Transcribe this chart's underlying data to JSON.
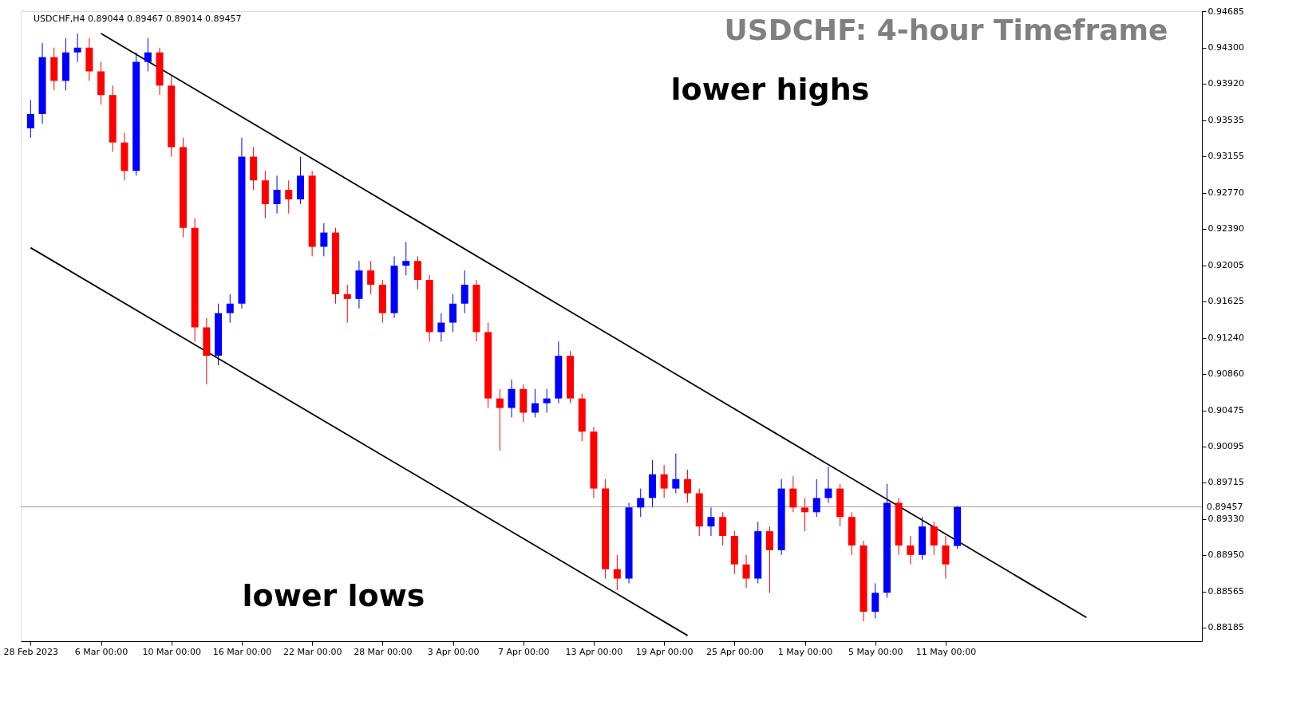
{
  "chart_data": {
    "type": "candlestick",
    "title": "USDCHF: 4-hour Timeframe",
    "annotations": [
      "USDCHF,H4  0.89044 0.89467 0.89014 0.89457",
      "lower highs",
      "lower lows"
    ],
    "categories": [
      "28 Feb 2023",
      null,
      null,
      null,
      null,
      null,
      "6 Mar 00:00",
      null,
      null,
      null,
      null,
      null,
      "10 Mar 00:00",
      null,
      null,
      null,
      null,
      null,
      "16 Mar 00:00",
      null,
      null,
      null,
      null,
      null,
      "22 Mar 00:00",
      null,
      null,
      null,
      null,
      null,
      "28 Mar 00:00",
      null,
      null,
      null,
      null,
      null,
      "3 Apr 00:00",
      null,
      null,
      null,
      null,
      null,
      "7 Apr 00:00",
      null,
      null,
      null,
      null,
      null,
      "13 Apr 00:00",
      null,
      null,
      null,
      null,
      null,
      "19 Apr 00:00",
      null,
      null,
      null,
      null,
      null,
      "25 Apr 00:00",
      null,
      null,
      null,
      null,
      null,
      "1 May 00:00",
      null,
      null,
      null,
      null,
      null,
      "5 May 00:00",
      null,
      null,
      null,
      null,
      null,
      "11 May 00:00",
      null,
      null,
      null,
      null,
      null,
      null,
      null,
      null,
      null,
      null,
      null,
      null,
      null,
      null,
      null,
      null,
      null,
      null,
      null,
      null,
      null
    ],
    "ohlc": [
      [
        0.9345,
        0.9375,
        0.9335,
        0.936
      ],
      [
        0.936,
        0.9435,
        0.935,
        0.942
      ],
      [
        0.942,
        0.943,
        0.9385,
        0.9395
      ],
      [
        0.9395,
        0.944,
        0.9385,
        0.9425
      ],
      [
        0.9425,
        0.9445,
        0.9415,
        0.943
      ],
      [
        0.943,
        0.944,
        0.9395,
        0.9405
      ],
      [
        0.9405,
        0.9415,
        0.937,
        0.938
      ],
      [
        0.938,
        0.939,
        0.932,
        0.933
      ],
      [
        0.933,
        0.934,
        0.929,
        0.93
      ],
      [
        0.93,
        0.9425,
        0.9295,
        0.9415
      ],
      [
        0.9415,
        0.944,
        0.9405,
        0.9425
      ],
      [
        0.9425,
        0.943,
        0.938,
        0.939
      ],
      [
        0.939,
        0.94,
        0.9315,
        0.9325
      ],
      [
        0.9325,
        0.9335,
        0.923,
        0.924
      ],
      [
        0.924,
        0.925,
        0.912,
        0.9135
      ],
      [
        0.9135,
        0.9145,
        0.9075,
        0.9105
      ],
      [
        0.9105,
        0.916,
        0.9095,
        0.915
      ],
      [
        0.915,
        0.917,
        0.914,
        0.916
      ],
      [
        0.916,
        0.9335,
        0.9155,
        0.9315
      ],
      [
        0.9315,
        0.9325,
        0.928,
        0.929
      ],
      [
        0.929,
        0.93,
        0.925,
        0.9265
      ],
      [
        0.9265,
        0.9295,
        0.9255,
        0.928
      ],
      [
        0.928,
        0.929,
        0.9255,
        0.927
      ],
      [
        0.927,
        0.9315,
        0.9265,
        0.9295
      ],
      [
        0.9295,
        0.93,
        0.921,
        0.922
      ],
      [
        0.922,
        0.9245,
        0.921,
        0.9235
      ],
      [
        0.9235,
        0.924,
        0.916,
        0.917
      ],
      [
        0.917,
        0.918,
        0.914,
        0.9165
      ],
      [
        0.9165,
        0.9205,
        0.9155,
        0.9195
      ],
      [
        0.9195,
        0.9205,
        0.917,
        0.918
      ],
      [
        0.918,
        0.9185,
        0.914,
        0.915
      ],
      [
        0.915,
        0.921,
        0.9145,
        0.92
      ],
      [
        0.92,
        0.9225,
        0.919,
        0.9205
      ],
      [
        0.9205,
        0.921,
        0.9175,
        0.9185
      ],
      [
        0.9185,
        0.919,
        0.912,
        0.913
      ],
      [
        0.913,
        0.915,
        0.912,
        0.914
      ],
      [
        0.914,
        0.917,
        0.913,
        0.916
      ],
      [
        0.916,
        0.9195,
        0.915,
        0.918
      ],
      [
        0.918,
        0.9185,
        0.912,
        0.913
      ],
      [
        0.913,
        0.914,
        0.905,
        0.906
      ],
      [
        0.906,
        0.907,
        0.9005,
        0.905
      ],
      [
        0.905,
        0.908,
        0.904,
        0.907
      ],
      [
        0.907,
        0.9075,
        0.9035,
        0.9045
      ],
      [
        0.9045,
        0.907,
        0.904,
        0.9055
      ],
      [
        0.9055,
        0.907,
        0.9045,
        0.906
      ],
      [
        0.906,
        0.912,
        0.9055,
        0.9105
      ],
      [
        0.9105,
        0.911,
        0.9055,
        0.906
      ],
      [
        0.906,
        0.9065,
        0.9015,
        0.9025
      ],
      [
        0.9025,
        0.903,
        0.8955,
        0.8965
      ],
      [
        0.8965,
        0.8975,
        0.887,
        0.888
      ],
      [
        0.888,
        0.8895,
        0.8858,
        0.887
      ],
      [
        0.887,
        0.895,
        0.8865,
        0.8945
      ],
      [
        0.8945,
        0.8965,
        0.8935,
        0.8955
      ],
      [
        0.8955,
        0.8995,
        0.8945,
        0.898
      ],
      [
        0.898,
        0.899,
        0.8955,
        0.8965
      ],
      [
        0.8965,
        0.9002,
        0.896,
        0.8975
      ],
      [
        0.8975,
        0.8985,
        0.895,
        0.896
      ],
      [
        0.896,
        0.8965,
        0.8915,
        0.8925
      ],
      [
        0.8925,
        0.8945,
        0.8915,
        0.8935
      ],
      [
        0.8935,
        0.894,
        0.8905,
        0.8915
      ],
      [
        0.8915,
        0.892,
        0.8875,
        0.8885
      ],
      [
        0.8885,
        0.8895,
        0.886,
        0.887
      ],
      [
        0.887,
        0.893,
        0.8865,
        0.892
      ],
      [
        0.892,
        0.8925,
        0.8855,
        0.89
      ],
      [
        0.89,
        0.8975,
        0.8895,
        0.8965
      ],
      [
        0.8965,
        0.8978,
        0.894,
        0.8945
      ],
      [
        0.8945,
        0.8955,
        0.892,
        0.894
      ],
      [
        0.894,
        0.8975,
        0.8935,
        0.8955
      ],
      [
        0.8955,
        0.8988,
        0.895,
        0.8965
      ],
      [
        0.8965,
        0.897,
        0.8925,
        0.8935
      ],
      [
        0.8935,
        0.894,
        0.8895,
        0.8905
      ],
      [
        0.8905,
        0.891,
        0.8825,
        0.8835
      ],
      [
        0.8835,
        0.8865,
        0.8828,
        0.8855
      ],
      [
        0.8855,
        0.897,
        0.885,
        0.895
      ],
      [
        0.895,
        0.8955,
        0.8895,
        0.8905
      ],
      [
        0.8905,
        0.8915,
        0.8885,
        0.8895
      ],
      [
        0.8895,
        0.8935,
        0.889,
        0.8925
      ],
      [
        0.8925,
        0.893,
        0.8895,
        0.8905
      ],
      [
        0.8905,
        0.8915,
        0.887,
        0.8885
      ],
      [
        0.89044,
        0.89467,
        0.89014,
        0.89457
      ],
      null,
      null,
      null,
      null,
      null,
      null,
      null,
      null,
      null,
      null,
      null,
      null,
      null,
      null,
      null,
      null,
      null,
      null,
      null,
      null
    ],
    "colors": [
      "#0000ff",
      "#0000ff",
      "#ff0000",
      "#0000ff",
      "#0000ff",
      "#ff0000",
      "#ff0000",
      "#ff0000",
      "#ff0000",
      "#0000ff",
      "#0000ff",
      "#ff0000",
      "#ff0000",
      "#ff0000",
      "#ff0000",
      "#ff0000",
      "#0000ff",
      "#0000ff",
      "#0000ff",
      "#ff0000",
      "#ff0000",
      "#0000ff",
      "#ff0000",
      "#0000ff",
      "#ff0000",
      "#0000ff",
      "#ff0000",
      "#ff0000",
      "#0000ff",
      "#ff0000",
      "#ff0000",
      "#0000ff",
      "#0000ff",
      "#ff0000",
      "#ff0000",
      "#0000ff",
      "#0000ff",
      "#0000ff",
      "#ff0000",
      "#ff0000",
      "#ff0000",
      "#0000ff",
      "#ff0000",
      "#0000ff",
      "#0000ff",
      "#0000ff",
      "#ff0000",
      "#ff0000",
      "#ff0000",
      "#ff0000",
      "#ff0000",
      "#0000ff",
      "#0000ff",
      "#0000ff",
      "#ff0000",
      "#0000ff",
      "#ff0000",
      "#ff0000",
      "#0000ff",
      "#ff0000",
      "#ff0000",
      "#ff0000",
      "#0000ff",
      "#ff0000",
      "#0000ff",
      "#ff0000",
      "#ff0000",
      "#0000ff",
      "#0000ff",
      "#ff0000",
      "#ff0000",
      "#ff0000",
      "#0000ff",
      "#0000ff",
      "#ff0000",
      "#ff0000",
      "#0000ff",
      "#ff0000",
      "#ff0000",
      "#0000ff",
      null,
      null,
      null,
      null,
      null,
      null,
      null,
      null,
      null,
      null,
      null,
      null,
      null,
      null,
      null,
      null,
      null,
      null,
      null,
      null
    ],
    "series": [
      {
        "type": "line",
        "color": "#000000",
        "values": [
          null,
          null,
          null,
          null,
          null,
          null,
          0.9445,
          null,
          null,
          null,
          null,
          null,
          null,
          null,
          null,
          null,
          null,
          null,
          null,
          null,
          null,
          null,
          null,
          null,
          null,
          null,
          null,
          null,
          null,
          null,
          null,
          null,
          null,
          null,
          null,
          null,
          null,
          null,
          null,
          null,
          null,
          null,
          null,
          null,
          null,
          null,
          null,
          null,
          null,
          null,
          null,
          null,
          null,
          null,
          null,
          null,
          null,
          null,
          null,
          null,
          null,
          null,
          null,
          null,
          null,
          null,
          null,
          null,
          null,
          null,
          null,
          null,
          null,
          null,
          null,
          null,
          null,
          null,
          null,
          null,
          null,
          null,
          null,
          null,
          null,
          null,
          null,
          null,
          null,
          null,
          0.8829,
          null,
          null,
          null,
          null,
          null,
          null,
          null,
          null,
          null
        ]
      },
      {
        "type": "line",
        "color": "#000000",
        "values": [
          0.9219,
          null,
          null,
          null,
          null,
          null,
          null,
          null,
          null,
          null,
          null,
          null,
          null,
          null,
          null,
          null,
          null,
          null,
          null,
          null,
          null,
          null,
          null,
          null,
          null,
          null,
          null,
          null,
          null,
          null,
          null,
          null,
          null,
          null,
          null,
          null,
          null,
          null,
          null,
          null,
          null,
          null,
          null,
          null,
          null,
          null,
          null,
          null,
          null,
          null,
          null,
          null,
          null,
          null,
          null,
          null,
          0.881,
          null,
          null,
          null,
          null,
          null,
          null,
          null,
          null,
          null,
          null,
          null,
          null,
          null,
          null,
          null,
          null,
          null,
          null,
          null,
          null,
          null,
          null,
          null,
          null,
          null,
          null,
          null,
          null,
          null,
          null,
          null,
          null,
          null,
          null,
          null,
          null,
          null,
          null,
          null,
          null,
          null,
          null,
          null
        ]
      }
    ],
    "ref_lines": [
      {
        "axis": "y",
        "value": 0.89457,
        "label": "0.89457",
        "color": "#a0a0a0"
      }
    ],
    "ylim": [
      0.8804,
      0.94685
    ],
    "yticks": [
      0.94685,
      {
        "value": 0.943,
        "label": "0.94300"
      },
      {
        "value": 0.9392,
        "label": "0.93920"
      },
      0.93535,
      0.93155,
      {
        "value": 0.9277,
        "label": "0.92770"
      },
      {
        "value": 0.9239,
        "label": "0.92390"
      },
      0.92005,
      0.91625,
      {
        "value": 0.9124,
        "label": "0.91240"
      },
      {
        "value": 0.9086,
        "label": "0.90860"
      },
      0.90475,
      0.90095,
      0.89715,
      {
        "value": 0.8933,
        "label": "0.89330"
      },
      {
        "value": 0.8895,
        "label": "0.88950"
      },
      0.88565,
      0.88185
    ]
  }
}
